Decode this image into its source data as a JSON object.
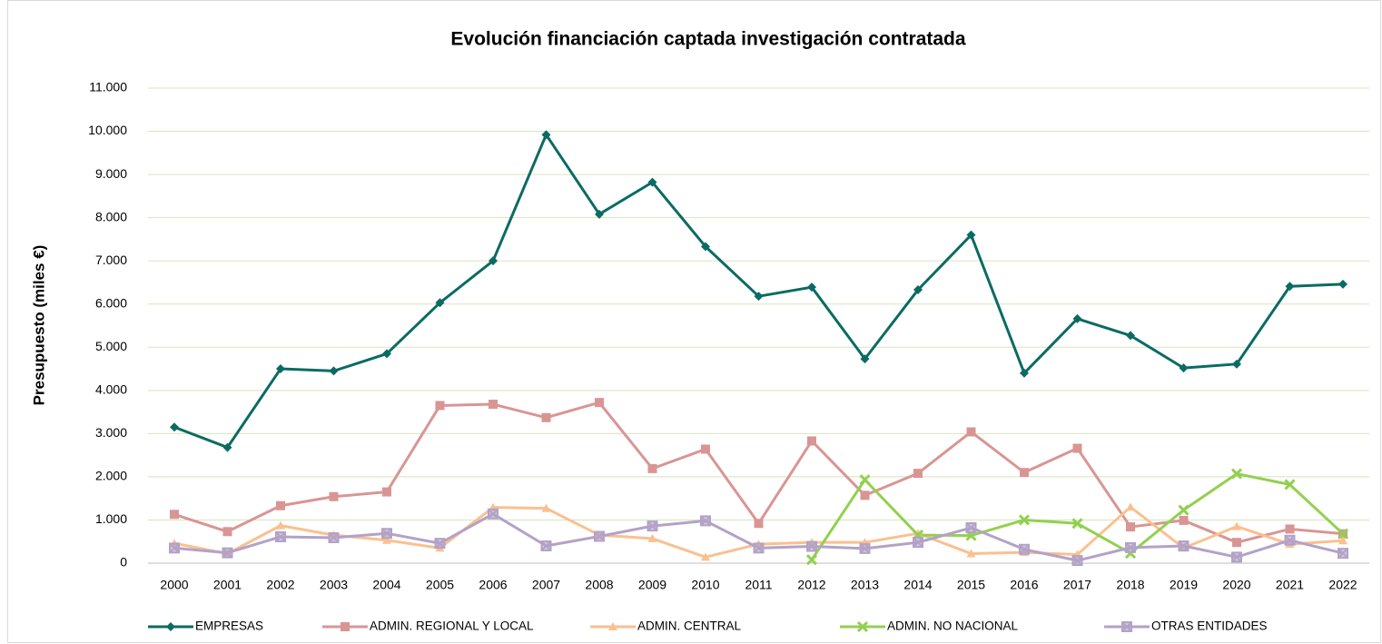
{
  "chart_data": {
    "type": "line",
    "title": "Evolución financiación captada investigación contratada",
    "y_label": "Presupuesto (miles €)",
    "categories": [
      "2000",
      "2001",
      "2002",
      "2003",
      "2004",
      "2005",
      "2006",
      "2007",
      "2008",
      "2009",
      "2010",
      "2011",
      "2012",
      "2013",
      "2014",
      "2015",
      "2016",
      "2017",
      "2018",
      "2019",
      "2020",
      "2021",
      "2022"
    ],
    "ylim": [
      0,
      11000
    ],
    "yticks": [
      0,
      {
        "value": 1000,
        "label": "1.000"
      },
      {
        "value": 2000,
        "label": "2.000"
      },
      {
        "value": 3000,
        "label": "3.000"
      },
      {
        "value": 4000,
        "label": "4.000"
      },
      {
        "value": 5000,
        "label": "5.000"
      },
      {
        "value": 6000,
        "label": "6.000"
      },
      {
        "value": 7000,
        "label": "7.000"
      },
      {
        "value": 8000,
        "label": "8.000"
      },
      {
        "value": 9000,
        "label": "9.000"
      },
      {
        "value": 10000,
        "label": "10.000"
      },
      {
        "value": 11000,
        "label": "11.000"
      }
    ],
    "grid": true,
    "legend": "bottom",
    "series": [
      {
        "name": "EMPRESAS",
        "color": "#0b6b63",
        "marker": "diamond",
        "values": [
          3150,
          2680,
          4500,
          4450,
          4850,
          6030,
          7000,
          9920,
          8080,
          8820,
          7330,
          6180,
          6390,
          4730,
          6330,
          7600,
          4400,
          5660,
          5270,
          4520,
          4610,
          6410,
          6460
        ]
      },
      {
        "name": "ADMIN. REGIONAL Y LOCAL",
        "color": "#d99594",
        "marker": "square",
        "values": [
          1130,
          730,
          1330,
          1540,
          1650,
          3650,
          3680,
          3370,
          3720,
          2190,
          2640,
          920,
          2830,
          1570,
          2080,
          3040,
          2100,
          2660,
          840,
          990,
          480,
          790,
          680
        ]
      },
      {
        "name": "ADMIN. CENTRAL",
        "color": "#fac08f",
        "marker": "triangle",
        "values": [
          460,
          220,
          870,
          650,
          530,
          350,
          1290,
          1270,
          650,
          570,
          140,
          440,
          480,
          480,
          690,
          220,
          250,
          200,
          1300,
          350,
          850,
          440,
          520
        ]
      },
      {
        "name": "ADMIN. NO NACIONAL",
        "color": "#92d050",
        "marker": "cross",
        "values": [
          null,
          null,
          null,
          null,
          null,
          null,
          null,
          null,
          null,
          null,
          null,
          null,
          80,
          1930,
          650,
          640,
          1000,
          920,
          230,
          1230,
          2070,
          1820,
          680
        ]
      },
      {
        "name": "OTRAS ENTIDADES",
        "color": "#b3a2c7",
        "marker": "xsquare",
        "values": [
          350,
          240,
          610,
          590,
          690,
          460,
          1140,
          400,
          620,
          860,
          980,
          350,
          390,
          340,
          480,
          820,
          320,
          60,
          360,
          400,
          140,
          530,
          230
        ]
      }
    ]
  }
}
